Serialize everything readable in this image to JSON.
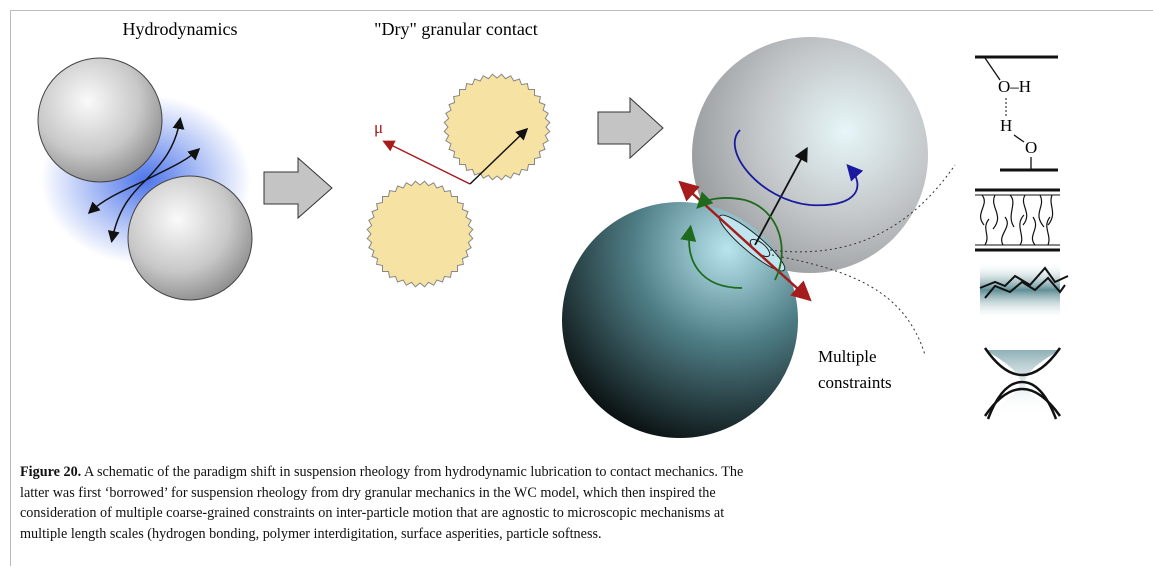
{
  "figure": {
    "labels": {
      "hydrodynamics": "Hydrodynamics",
      "dry_contact": "\"Dry\" granular contact",
      "mu": "μ",
      "constraints": [
        "Multiple",
        "constraints"
      ],
      "oh": "O–H",
      "h": "H",
      "o": "O"
    },
    "caption": {
      "label": "Figure 20.",
      "lines": [
        " A schematic of the paradigm shift in suspension rheology from hydrodynamic lubrication to contact mechanics. The",
        "latter was first ‘borrowed’ for suspension rheology from dry granular mechanics in the WC model, which then inspired the",
        "consideration of multiple coarse-grained constraints on inter-particle motion that are agnostic to microscopic mechanisms at",
        "multiple length scales (hydrogen bonding, polymer interdigitation, surface asperities, particle softness."
      ]
    }
  }
}
